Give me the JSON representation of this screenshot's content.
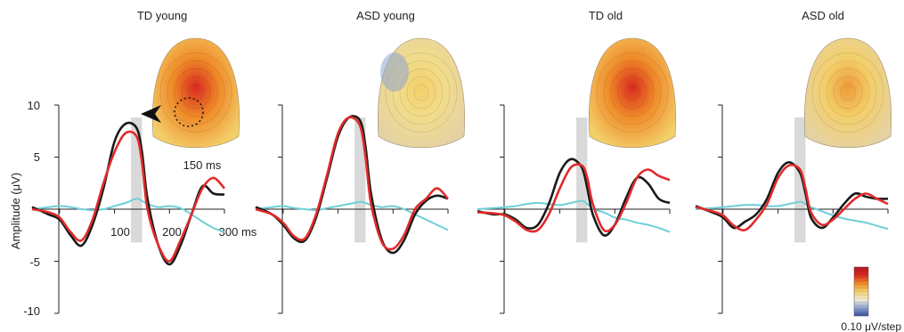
{
  "chart_data": {
    "type": "line",
    "ylabel": "Amplitude (μV)",
    "ylim": [
      -10,
      10
    ],
    "yticks": [
      10,
      5,
      0,
      -5,
      -10
    ],
    "xticks_first_panel": [
      100,
      200,
      "300 ms"
    ],
    "xlim_ms": [
      -50,
      300
    ],
    "highlight_window_ms": [
      130,
      150
    ],
    "topo_time_label": "150 ms",
    "colorbar_label": "0.10 μV/step",
    "colorbar_colors": [
      "#3b4fa0",
      "#8ea4cf",
      "#f2ead6",
      "#f3cf6a",
      "#ef8a28",
      "#d92a20",
      "#b3171f"
    ],
    "series_colors": {
      "black": "#1a1a1a",
      "red": "#e02b2b",
      "cyan": "#6fcfd8"
    },
    "panels": [
      {
        "title": "TD young",
        "x": [
          -50,
          -20,
          0,
          20,
          40,
          60,
          80,
          100,
          120,
          140,
          150,
          160,
          180,
          200,
          220,
          240,
          260,
          280,
          300
        ],
        "series": [
          {
            "color": "black",
            "values": [
              0.2,
              -0.5,
              -1.0,
              -2.5,
              -3.5,
              -1.5,
              2.0,
              6.5,
              8.2,
              7.8,
              5.5,
              1.0,
              -3.5,
              -5.3,
              -3.5,
              -0.5,
              2.2,
              1.5,
              1.4
            ]
          },
          {
            "color": "red",
            "values": [
              0.0,
              -0.3,
              -0.8,
              -2.2,
              -3.0,
              -1.0,
              2.5,
              5.5,
              7.3,
              7.0,
              4.5,
              0.0,
              -3.5,
              -5.0,
              -3.0,
              -0.5,
              2.0,
              3.0,
              2.0
            ]
          },
          {
            "color": "cyan",
            "values": [
              0.0,
              0.2,
              0.3,
              0.2,
              0.0,
              -0.1,
              0.0,
              0.3,
              0.6,
              1.0,
              0.8,
              0.5,
              0.2,
              0.3,
              0.1,
              -0.5,
              -1.2,
              -1.8,
              -2.2
            ]
          }
        ],
        "topomap": {
          "center_color": "#d92a20",
          "mid_color": "#ef8a28",
          "edge_color": "#f3cf6a",
          "marked_region": true
        }
      },
      {
        "title": "ASD young",
        "x": [
          -50,
          -20,
          0,
          20,
          40,
          60,
          80,
          100,
          120,
          140,
          150,
          160,
          180,
          200,
          220,
          240,
          260,
          280,
          300
        ],
        "series": [
          {
            "color": "black",
            "values": [
              0.2,
              -0.5,
              -1.5,
              -2.8,
              -3.0,
              -0.8,
              3.0,
              7.0,
              8.8,
              8.5,
              6.0,
              1.5,
              -3.0,
              -4.2,
              -3.0,
              -0.5,
              0.8,
              1.3,
              1.0
            ]
          },
          {
            "color": "red",
            "values": [
              0.0,
              -0.5,
              -1.3,
              -2.6,
              -2.8,
              -0.5,
              3.3,
              7.3,
              8.8,
              8.0,
              5.0,
              0.5,
              -3.2,
              -3.8,
              -2.5,
              0.0,
              1.0,
              2.0,
              1.0
            ]
          },
          {
            "color": "cyan",
            "values": [
              0.0,
              0.2,
              0.3,
              0.1,
              0.0,
              -0.1,
              0.1,
              0.3,
              0.5,
              0.7,
              0.6,
              0.4,
              0.2,
              0.3,
              0.0,
              -0.5,
              -1.0,
              -1.5,
              -2.0
            ]
          }
        ],
        "topomap": {
          "center_color": "#f3cf6a",
          "mid_color": "#f2dc8a",
          "edge_color": "#e4d2a4",
          "marked_region": false
        }
      },
      {
        "title": "TD old",
        "x": [
          -50,
          -20,
          0,
          20,
          40,
          60,
          80,
          100,
          120,
          140,
          150,
          160,
          180,
          200,
          220,
          240,
          260,
          280,
          300
        ],
        "series": [
          {
            "color": "black",
            "values": [
              -0.2,
              -0.5,
              -0.5,
              -1.0,
              -1.8,
              -1.5,
              0.5,
              3.5,
              4.8,
              4.0,
              2.0,
              -0.5,
              -2.5,
              -1.5,
              1.0,
              3.0,
              2.5,
              1.0,
              0.6
            ]
          },
          {
            "color": "red",
            "values": [
              -0.3,
              -0.4,
              -0.6,
              -1.2,
              -2.0,
              -2.0,
              -0.5,
              2.0,
              4.0,
              4.2,
              3.0,
              0.5,
              -2.0,
              -1.5,
              0.5,
              3.0,
              3.8,
              3.2,
              2.8
            ]
          },
          {
            "color": "cyan",
            "values": [
              0.0,
              0.1,
              0.2,
              0.3,
              0.5,
              0.6,
              0.5,
              0.4,
              0.6,
              0.8,
              0.5,
              0.0,
              -0.3,
              -0.8,
              -1.0,
              -1.3,
              -1.5,
              -1.8,
              -2.2
            ]
          }
        ],
        "topomap": {
          "center_color": "#d92a20",
          "mid_color": "#ef8a28",
          "edge_color": "#f3cf6a",
          "marked_region": false
        }
      },
      {
        "title": "ASD old",
        "x": [
          -50,
          -20,
          0,
          20,
          40,
          60,
          80,
          100,
          120,
          140,
          150,
          160,
          180,
          200,
          220,
          240,
          260,
          280,
          300
        ],
        "series": [
          {
            "color": "black",
            "values": [
              0.3,
              -0.3,
              -0.8,
              -1.8,
              -1.2,
              -0.5,
              1.0,
              3.5,
              4.5,
              3.5,
              1.5,
              -0.8,
              -1.8,
              -0.8,
              0.5,
              1.5,
              1.2,
              1.0,
              1.0
            ]
          },
          {
            "color": "red",
            "values": [
              0.2,
              -0.2,
              -0.6,
              -1.6,
              -2.0,
              -1.0,
              0.5,
              3.0,
              4.2,
              3.8,
              2.0,
              -0.3,
              -1.5,
              -1.0,
              0.0,
              1.0,
              1.5,
              1.0,
              0.5
            ]
          },
          {
            "color": "cyan",
            "values": [
              0.0,
              0.1,
              0.2,
              0.3,
              0.4,
              0.4,
              0.3,
              0.3,
              0.5,
              0.7,
              0.5,
              0.2,
              -0.2,
              -0.6,
              -0.9,
              -1.1,
              -1.3,
              -1.6,
              -1.9
            ]
          }
        ],
        "topomap": {
          "center_color": "#ef9a3a",
          "mid_color": "#f3cf6a",
          "edge_color": "#e4d2a4",
          "marked_region": false
        }
      }
    ]
  }
}
